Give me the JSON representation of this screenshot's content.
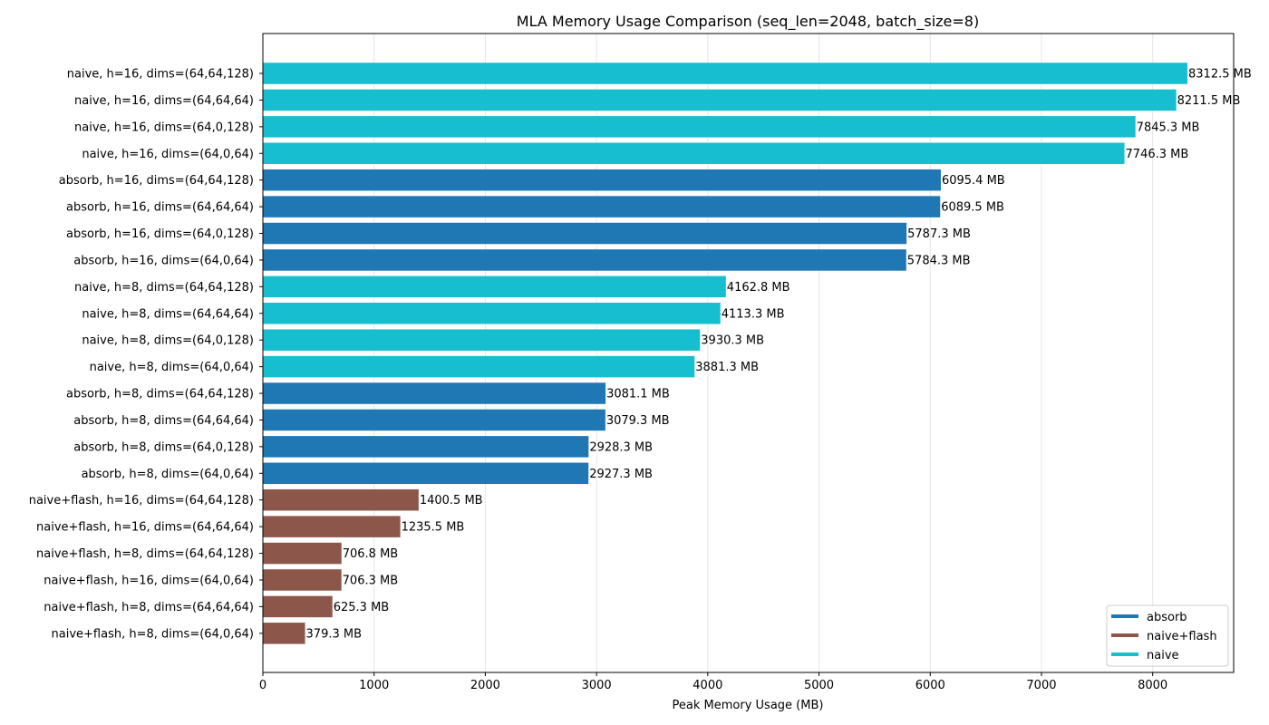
{
  "chart_data": {
    "type": "bar",
    "orientation": "horizontal",
    "title": "MLA Memory Usage Comparison (seq_len=2048, batch_size=8)",
    "xlabel": "Peak Memory Usage (MB)",
    "ylabel": "",
    "xlim": [
      0,
      8728
    ],
    "xticks": [
      0,
      1000,
      2000,
      3000,
      4000,
      5000,
      6000,
      7000,
      8000
    ],
    "grid": "x",
    "legend_position": "lower-right",
    "value_suffix": " MB",
    "categories": [
      "naive, h=16, dims=(64,64,128)",
      "naive, h=16, dims=(64,64,64)",
      "naive, h=16, dims=(64,0,128)",
      "naive, h=16, dims=(64,0,64)",
      "absorb, h=16, dims=(64,64,128)",
      "absorb, h=16, dims=(64,64,64)",
      "absorb, h=16, dims=(64,0,128)",
      "absorb, h=16, dims=(64,0,64)",
      "naive, h=8, dims=(64,64,128)",
      "naive, h=8, dims=(64,64,64)",
      "naive, h=8, dims=(64,0,128)",
      "naive, h=8, dims=(64,0,64)",
      "absorb, h=8, dims=(64,64,128)",
      "absorb, h=8, dims=(64,64,64)",
      "absorb, h=8, dims=(64,0,128)",
      "absorb, h=8, dims=(64,0,64)",
      "naive+flash, h=16, dims=(64,64,128)",
      "naive+flash, h=16, dims=(64,64,64)",
      "naive+flash, h=8, dims=(64,64,128)",
      "naive+flash, h=16, dims=(64,0,64)",
      "naive+flash, h=8, dims=(64,64,64)",
      "naive+flash, h=8, dims=(64,0,64)"
    ],
    "values": [
      8312.5,
      8211.5,
      7845.3,
      7746.3,
      6095.4,
      6089.5,
      5787.3,
      5784.3,
      4162.8,
      4113.3,
      3930.3,
      3881.3,
      3081.1,
      3079.3,
      2928.3,
      2927.3,
      1400.5,
      1235.5,
      706.8,
      706.3,
      625.3,
      379.3
    ],
    "groups": [
      "naive",
      "naive",
      "naive",
      "naive",
      "absorb",
      "absorb",
      "absorb",
      "absorb",
      "naive",
      "naive",
      "naive",
      "naive",
      "absorb",
      "absorb",
      "absorb",
      "absorb",
      "naive+flash",
      "naive+flash",
      "naive+flash",
      "naive+flash",
      "naive+flash",
      "naive+flash"
    ],
    "legend": [
      {
        "name": "absorb",
        "color": "#1f77b4"
      },
      {
        "name": "naive+flash",
        "color": "#8c564b"
      },
      {
        "name": "naive",
        "color": "#17becf"
      }
    ]
  }
}
